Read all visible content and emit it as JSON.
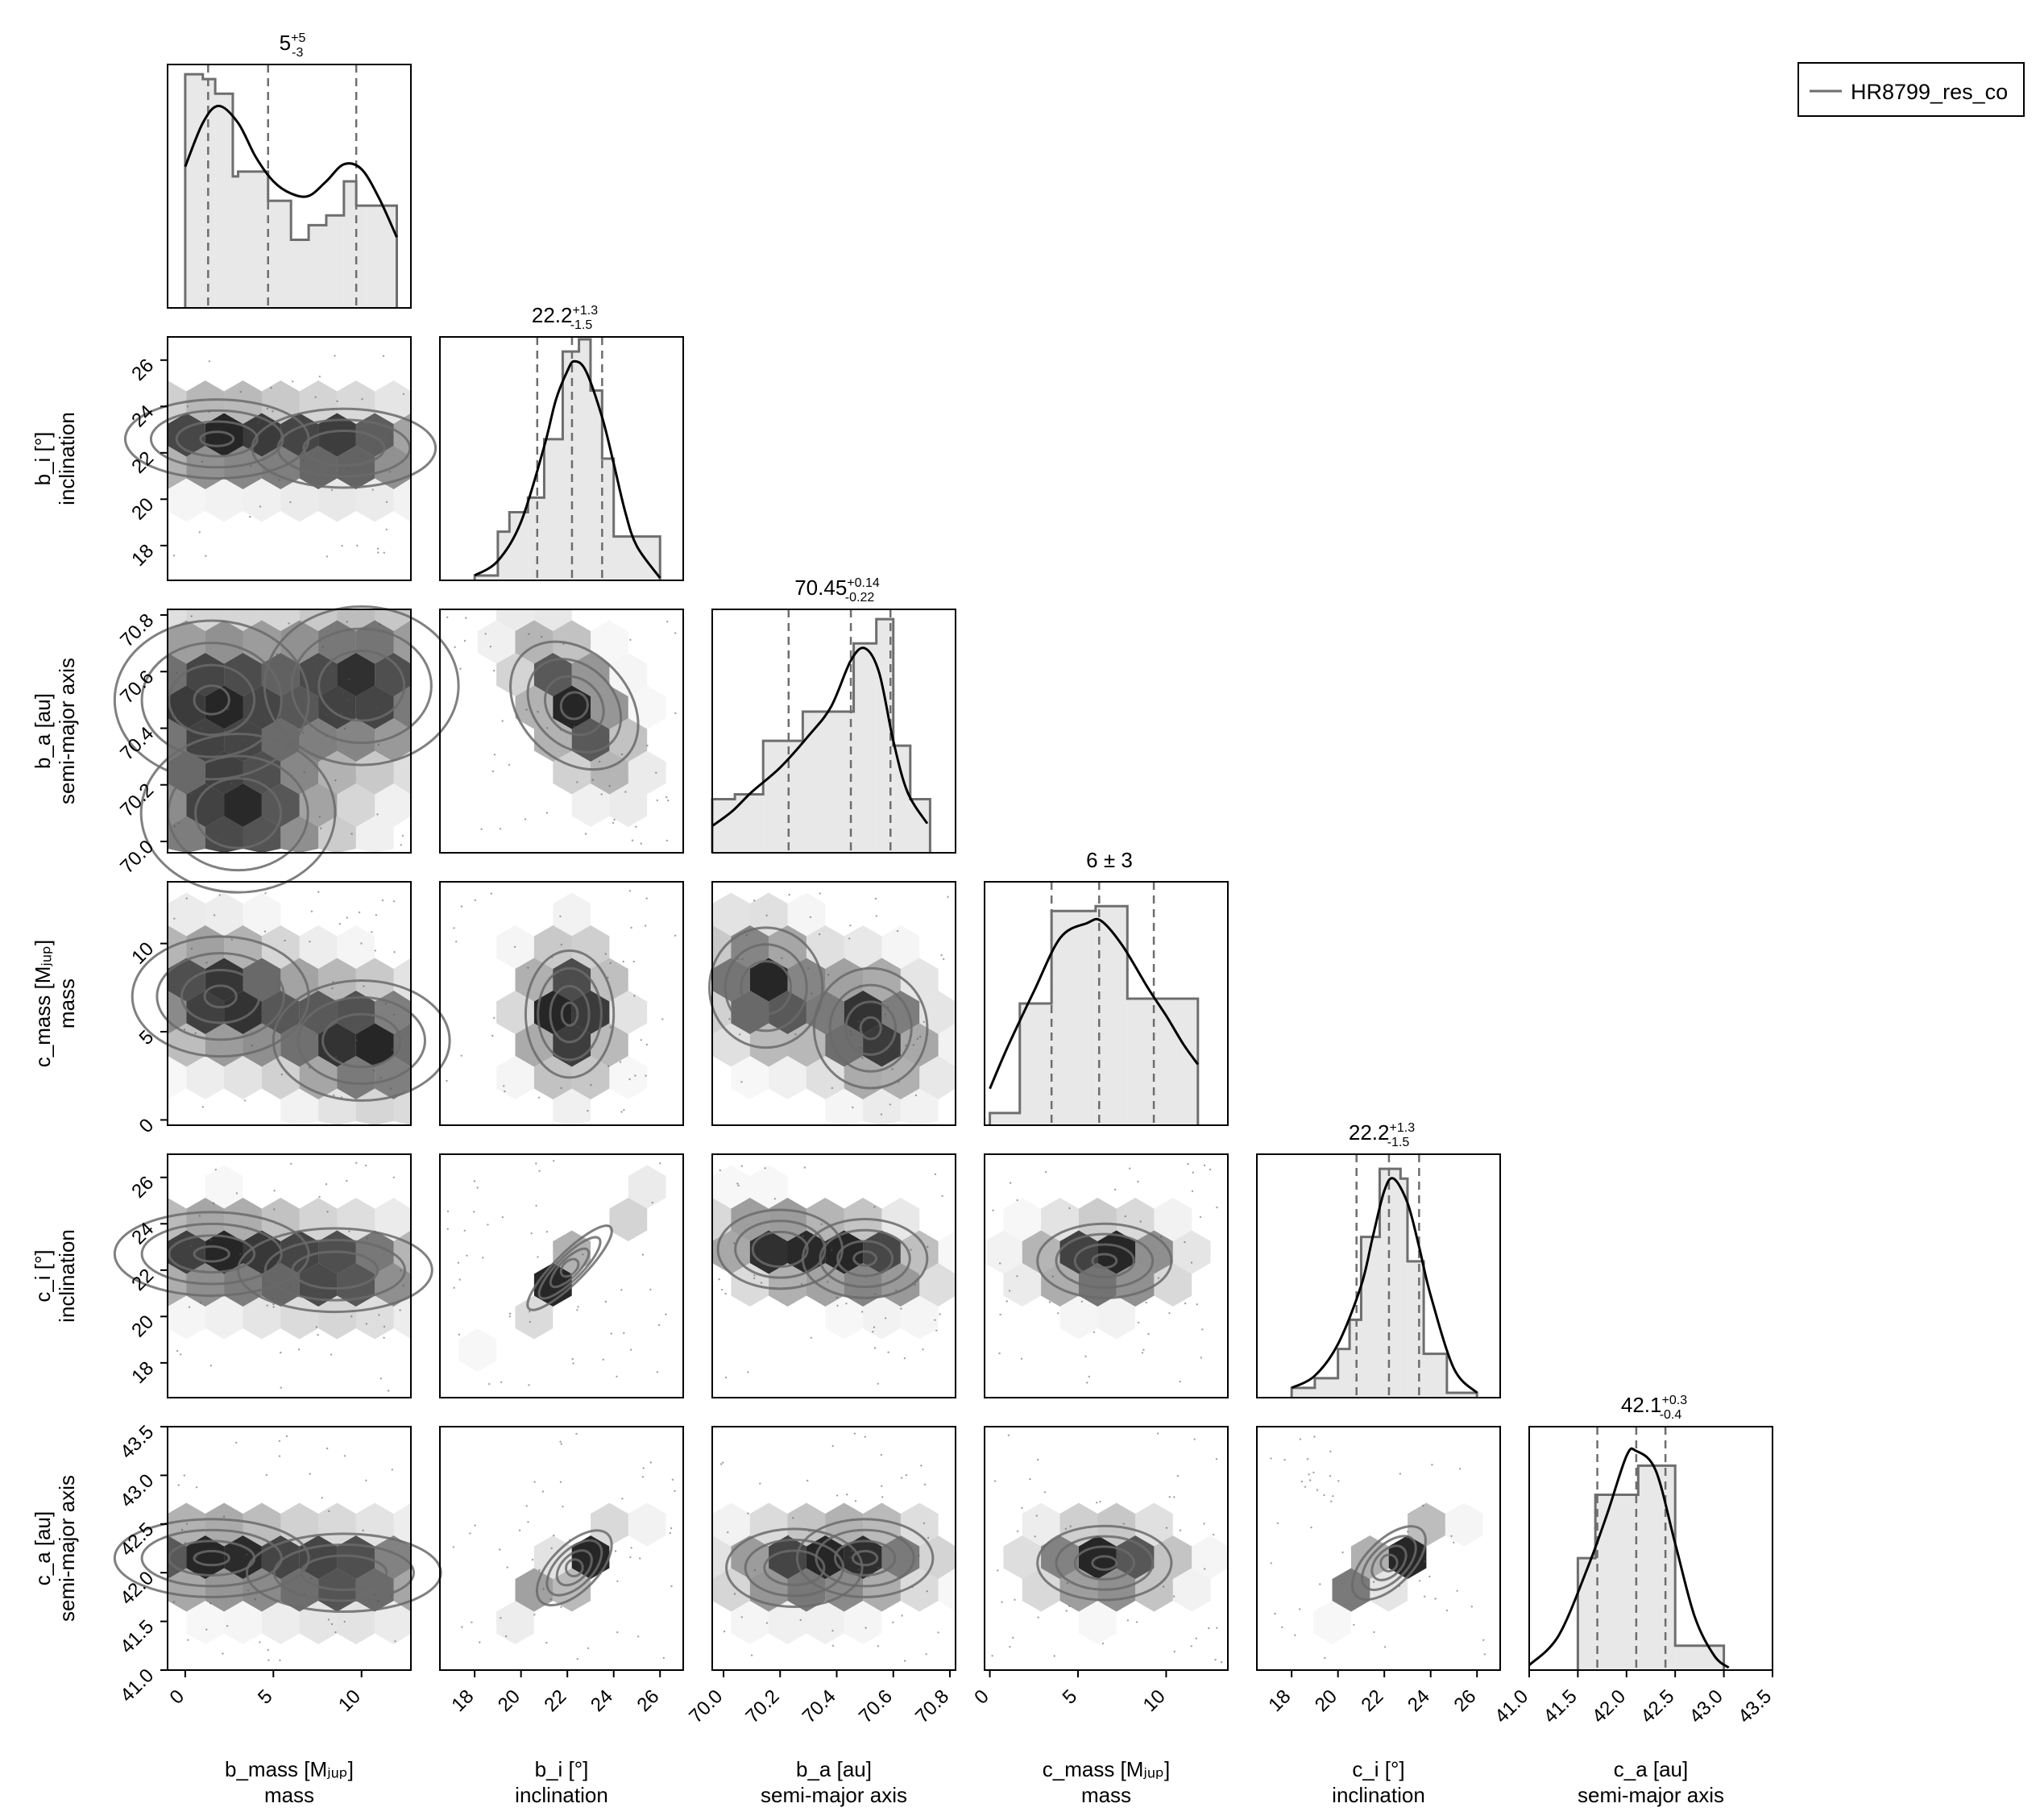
{
  "legend": {
    "label": "HR8799_res_co",
    "placement": "top-right"
  },
  "chart_data": {
    "type": "corner",
    "colors": {
      "hist_fill": "#e8e8e8",
      "hist_step": "#6e6e6e",
      "kde": "#000000",
      "contour": "#6a6a6a",
      "quantile": "#6e6e6e",
      "hex_base": "#000000"
    },
    "parameters": [
      {
        "name": "b_mass",
        "axis_label": "b_mass [Mⱼᵤₚ]",
        "desc": "mass",
        "range": [
          -1.0,
          12.8
        ],
        "ticks": [
          0,
          5,
          10
        ],
        "title": "5",
        "sup": "+5",
        "sub": "-3",
        "quantiles": [
          1.3,
          4.7,
          9.7
        ],
        "hist": {
          "edges": [
            0.0,
            1.0,
            1.7,
            2.7,
            3.0,
            4.7,
            6.0,
            7.0,
            8.0,
            9.0,
            9.7,
            10.3,
            12.0
          ],
          "heights": [
            0.96,
            0.94,
            0.88,
            0.54,
            0.56,
            0.44,
            0.28,
            0.34,
            0.38,
            0.52,
            0.42,
            0.42
          ]
        },
        "kde": [
          [
            0.0,
            0.58
          ],
          [
            1.0,
            0.76
          ],
          [
            1.9,
            0.83
          ],
          [
            3.0,
            0.76
          ],
          [
            4.0,
            0.62
          ],
          [
            5.0,
            0.52
          ],
          [
            6.0,
            0.47
          ],
          [
            7.0,
            0.46
          ],
          [
            8.0,
            0.52
          ],
          [
            9.0,
            0.59
          ],
          [
            10.0,
            0.57
          ],
          [
            11.0,
            0.45
          ],
          [
            12.0,
            0.29
          ]
        ]
      },
      {
        "name": "b_i",
        "axis_label": "b_i [°]",
        "desc": "inclination",
        "range": [
          16.5,
          27.0
        ],
        "ticks": [
          18,
          20,
          22,
          24,
          26
        ],
        "title": "22.2",
        "sup": "+1.3",
        "sub": "-1.5",
        "quantiles": [
          20.7,
          22.2,
          23.5
        ],
        "hist": {
          "edges": [
            18.0,
            19.0,
            19.5,
            20.3,
            20.7,
            21.0,
            21.8,
            22.5,
            23.0,
            23.5,
            24.0,
            24.5,
            25.0,
            26.0
          ],
          "heights": [
            0.02,
            0.2,
            0.28,
            0.34,
            0.34,
            0.58,
            0.94,
            0.99,
            0.78,
            0.5,
            0.18,
            0.18,
            0.18
          ]
        },
        "kde": [
          [
            18.0,
            0.02
          ],
          [
            19.0,
            0.08
          ],
          [
            20.0,
            0.24
          ],
          [
            21.0,
            0.55
          ],
          [
            21.5,
            0.74
          ],
          [
            22.0,
            0.86
          ],
          [
            22.3,
            0.9
          ],
          [
            22.8,
            0.86
          ],
          [
            23.5,
            0.67
          ],
          [
            24.0,
            0.48
          ],
          [
            24.5,
            0.28
          ],
          [
            25.0,
            0.14
          ],
          [
            26.0,
            0.01
          ]
        ]
      },
      {
        "name": "b_a",
        "axis_label": "b_a [au]",
        "desc": "semi-major axis",
        "range": [
          69.96,
          70.82
        ],
        "ticks": [
          70.0,
          70.2,
          70.4,
          70.6,
          70.8
        ],
        "title": "70.45",
        "sup": "+0.14",
        "sub": "-0.22",
        "quantiles": [
          70.23,
          70.45,
          70.59
        ],
        "hist": {
          "edges": [
            69.96,
            70.04,
            70.14,
            70.23,
            70.28,
            70.46,
            70.54,
            70.6,
            70.66,
            70.73
          ],
          "heights": [
            0.22,
            0.24,
            0.46,
            0.46,
            0.58,
            0.86,
            0.96,
            0.44,
            0.22
          ]
        },
        "kde": [
          [
            69.96,
            0.11
          ],
          [
            70.03,
            0.17
          ],
          [
            70.1,
            0.25
          ],
          [
            70.2,
            0.35
          ],
          [
            70.3,
            0.48
          ],
          [
            70.38,
            0.6
          ],
          [
            70.45,
            0.79
          ],
          [
            70.5,
            0.84
          ],
          [
            70.55,
            0.74
          ],
          [
            70.6,
            0.46
          ],
          [
            70.65,
            0.25
          ],
          [
            70.72,
            0.12
          ]
        ]
      },
      {
        "name": "c_mass",
        "axis_label": "c_mass [Mⱼᵤₚ]",
        "desc": "mass",
        "range": [
          -0.3,
          13.5
        ],
        "ticks": [
          0,
          5,
          10
        ],
        "title": "6 ± 3",
        "sup": "",
        "sub": "",
        "quantiles": [
          3.5,
          6.2,
          9.3
        ],
        "hist": {
          "edges": [
            0.0,
            1.7,
            3.5,
            6.0,
            7.8,
            9.3,
            11.0,
            11.8
          ],
          "heights": [
            0.05,
            0.5,
            0.88,
            0.9,
            0.52,
            0.52,
            0.52
          ]
        },
        "kde": [
          [
            0.0,
            0.15
          ],
          [
            1.0,
            0.32
          ],
          [
            2.5,
            0.55
          ],
          [
            4.0,
            0.77
          ],
          [
            5.5,
            0.83
          ],
          [
            6.3,
            0.84
          ],
          [
            7.5,
            0.74
          ],
          [
            9.0,
            0.56
          ],
          [
            10.0,
            0.45
          ],
          [
            11.0,
            0.33
          ],
          [
            11.8,
            0.25
          ]
        ]
      },
      {
        "name": "c_i",
        "axis_label": "c_i [°]",
        "desc": "inclination",
        "range": [
          16.5,
          27.0
        ],
        "ticks": [
          18,
          20,
          22,
          24,
          26
        ],
        "title": "22.2",
        "sup": "+1.3",
        "sub": "-1.5",
        "quantiles": [
          20.8,
          22.2,
          23.5
        ],
        "hist": {
          "edges": [
            18.0,
            19.0,
            20.0,
            20.5,
            21.0,
            21.8,
            22.7,
            23.0,
            23.7,
            24.7,
            26.0
          ],
          "heights": [
            0.04,
            0.08,
            0.2,
            0.32,
            0.66,
            0.94,
            0.9,
            0.56,
            0.18,
            0.02
          ]
        },
        "kde": [
          [
            18.0,
            0.04
          ],
          [
            19.0,
            0.09
          ],
          [
            20.0,
            0.22
          ],
          [
            21.0,
            0.46
          ],
          [
            21.5,
            0.66
          ],
          [
            22.0,
            0.85
          ],
          [
            22.4,
            0.9
          ],
          [
            23.0,
            0.8
          ],
          [
            23.5,
            0.62
          ],
          [
            24.0,
            0.42
          ],
          [
            25.0,
            0.12
          ],
          [
            26.0,
            0.02
          ]
        ]
      },
      {
        "name": "c_a",
        "axis_label": "c_a [au]",
        "desc": "semi-major axis",
        "range": [
          41.0,
          43.5
        ],
        "ticks": [
          41.0,
          41.5,
          42.0,
          42.5,
          43.0,
          43.5
        ],
        "title": "42.1",
        "sup": "+0.3",
        "sub": "-0.4",
        "quantiles": [
          41.7,
          42.1,
          42.4
        ],
        "hist": {
          "edges": [
            41.5,
            41.68,
            42.12,
            42.5,
            43.0
          ],
          "heights": [
            0.46,
            0.72,
            0.84,
            0.1
          ]
        },
        "kde": [
          [
            41.0,
            0.02
          ],
          [
            41.3,
            0.14
          ],
          [
            41.6,
            0.42
          ],
          [
            41.8,
            0.64
          ],
          [
            42.0,
            0.88
          ],
          [
            42.1,
            0.9
          ],
          [
            42.3,
            0.82
          ],
          [
            42.5,
            0.52
          ],
          [
            42.7,
            0.22
          ],
          [
            42.9,
            0.06
          ],
          [
            43.05,
            0.01
          ]
        ]
      }
    ],
    "pairs": [
      {
        "row": 1,
        "col": 0,
        "centers": [
          [
            1.8,
            22.6
          ],
          [
            9.0,
            22.2
          ]
        ],
        "spread": [
          5.2,
          1.7
        ],
        "corr": 0.0
      },
      {
        "row": 2,
        "col": 0,
        "centers": [
          [
            1.5,
            70.5
          ],
          [
            10.0,
            70.55
          ],
          [
            3.0,
            70.1
          ]
        ],
        "spread": [
          5.5,
          0.28
        ],
        "corr": 0.0
      },
      {
        "row": 2,
        "col": 1,
        "centers": [
          [
            22.3,
            70.48
          ]
        ],
        "spread": [
          2.3,
          0.26
        ],
        "corr": -0.55
      },
      {
        "row": 3,
        "col": 0,
        "centers": [
          [
            2.0,
            7.0
          ],
          [
            10.0,
            4.5
          ]
        ],
        "spread": [
          5.0,
          3.4
        ],
        "corr": -0.2
      },
      {
        "row": 3,
        "col": 1,
        "centers": [
          [
            22.1,
            6.0
          ]
        ],
        "spread": [
          1.9,
          3.6
        ],
        "corr": 0.0
      },
      {
        "row": 3,
        "col": 2,
        "centers": [
          [
            70.52,
            5.2
          ],
          [
            70.15,
            7.5
          ]
        ],
        "spread": [
          0.2,
          3.4
        ],
        "corr": -0.2
      },
      {
        "row": 4,
        "col": 0,
        "centers": [
          [
            1.5,
            22.7
          ],
          [
            8.5,
            22.0
          ]
        ],
        "spread": [
          5.5,
          1.8
        ],
        "corr": 0.0
      },
      {
        "row": 4,
        "col": 1,
        "centers": [
          [
            22.1,
            22.1
          ]
        ],
        "spread": [
          2.2,
          2.2
        ],
        "corr": 0.97
      },
      {
        "row": 4,
        "col": 2,
        "centers": [
          [
            70.5,
            22.5
          ],
          [
            70.2,
            22.9
          ]
        ],
        "spread": [
          0.22,
          1.7
        ],
        "corr": -0.3
      },
      {
        "row": 4,
        "col": 3,
        "centers": [
          [
            6.5,
            22.4
          ]
        ],
        "spread": [
          3.8,
          1.6
        ],
        "corr": 0.0
      },
      {
        "row": 5,
        "col": 0,
        "centers": [
          [
            1.5,
            42.15
          ],
          [
            9.0,
            42.0
          ]
        ],
        "spread": [
          5.5,
          0.4
        ],
        "corr": 0.0
      },
      {
        "row": 5,
        "col": 1,
        "centers": [
          [
            22.3,
            42.05
          ]
        ],
        "spread": [
          2.0,
          0.38
        ],
        "corr": 0.85
      },
      {
        "row": 5,
        "col": 2,
        "centers": [
          [
            70.5,
            42.15
          ],
          [
            70.25,
            42.05
          ]
        ],
        "spread": [
          0.24,
          0.4
        ],
        "corr": 0.0
      },
      {
        "row": 5,
        "col": 3,
        "centers": [
          [
            6.5,
            42.1
          ]
        ],
        "spread": [
          3.8,
          0.38
        ],
        "corr": 0.0
      },
      {
        "row": 5,
        "col": 4,
        "centers": [
          [
            22.2,
            42.1
          ]
        ],
        "spread": [
          2.0,
          0.36
        ],
        "corr": 0.85
      }
    ]
  }
}
